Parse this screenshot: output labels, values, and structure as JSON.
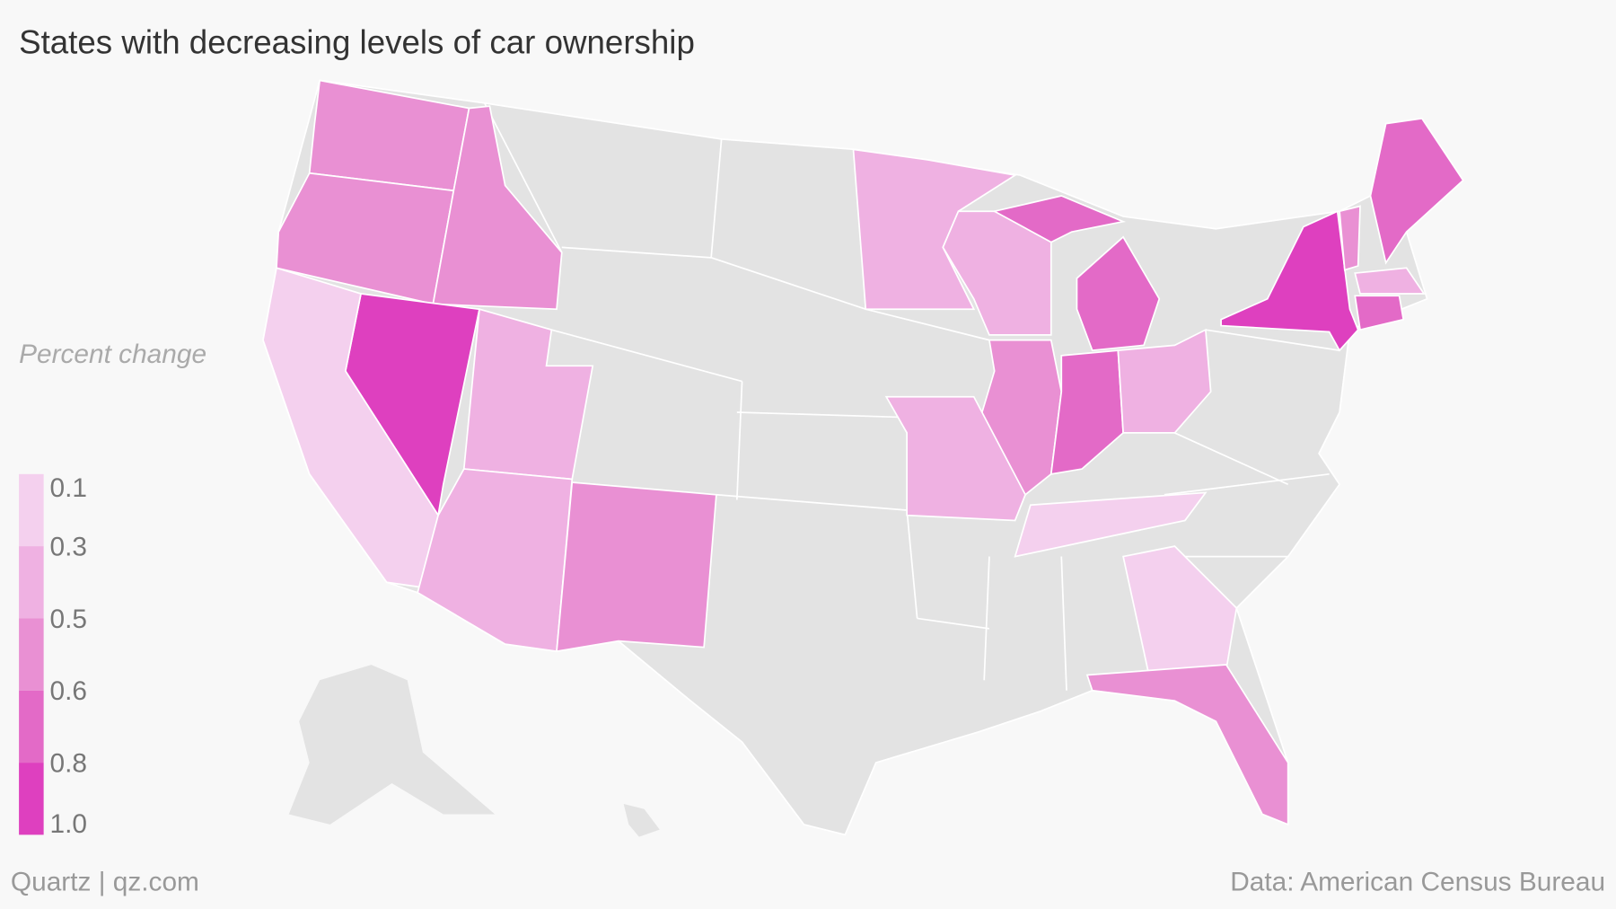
{
  "chart_data": {
    "type": "choropleth",
    "title": "States with decreasing levels of car ownership",
    "legend_title": "Percent change",
    "ticks": [
      0.1,
      0.3,
      0.5,
      0.6,
      0.8,
      {
        "value": 1,
        "label": "1.0"
      }
    ],
    "colors": [
      "#f4d0ee",
      "#efb1e2",
      "#e990d3",
      "#e36ac7",
      "#de40bf"
    ],
    "missing_color": "#e3e3e3",
    "values": [
      0.55,
      0.55,
      0.55,
      0.9,
      0.2,
      0.4,
      0.4,
      0.55,
      0.4,
      0.4,
      0.7,
      0.55,
      0.7,
      0.4,
      0.4,
      0.2,
      0.2,
      0.55,
      0.9,
      0.55,
      0.7,
      0.4,
      0.7
    ],
    "credit": "Quartz | qz.com",
    "source": "Data: American Census Bureau"
  }
}
